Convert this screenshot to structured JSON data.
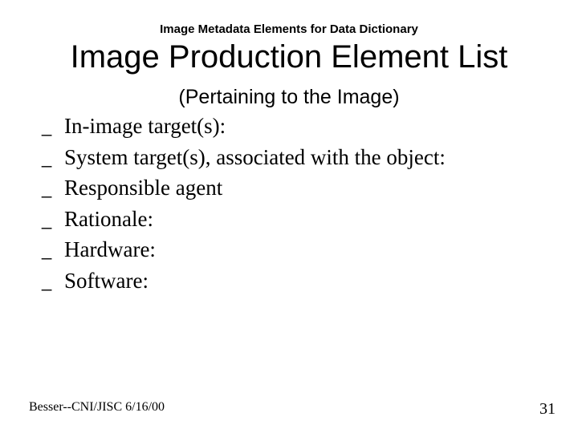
{
  "header": {
    "small_title": "Image Metadata Elements for Data Dictionary",
    "main_title": "Image Production Element List",
    "subtitle": "(Pertaining to the Image)"
  },
  "list": {
    "bullet_char": "_",
    "items": [
      "In-image target(s):",
      "System target(s), associated with the object:",
      "Responsible agent",
      "Rationale:",
      "Hardware:",
      "Software:"
    ]
  },
  "footer": {
    "left_text": "Besser--CNI/JISC   6/16/00",
    "page_number": "31"
  },
  "styling": {
    "background_color": "#ffffff",
    "text_color": "#000000",
    "header_small_fontsize": 15,
    "title_fontsize": 40,
    "subtitle_fontsize": 25,
    "list_fontsize": 27,
    "footer_left_fontsize": 16,
    "footer_right_fontsize": 20
  }
}
